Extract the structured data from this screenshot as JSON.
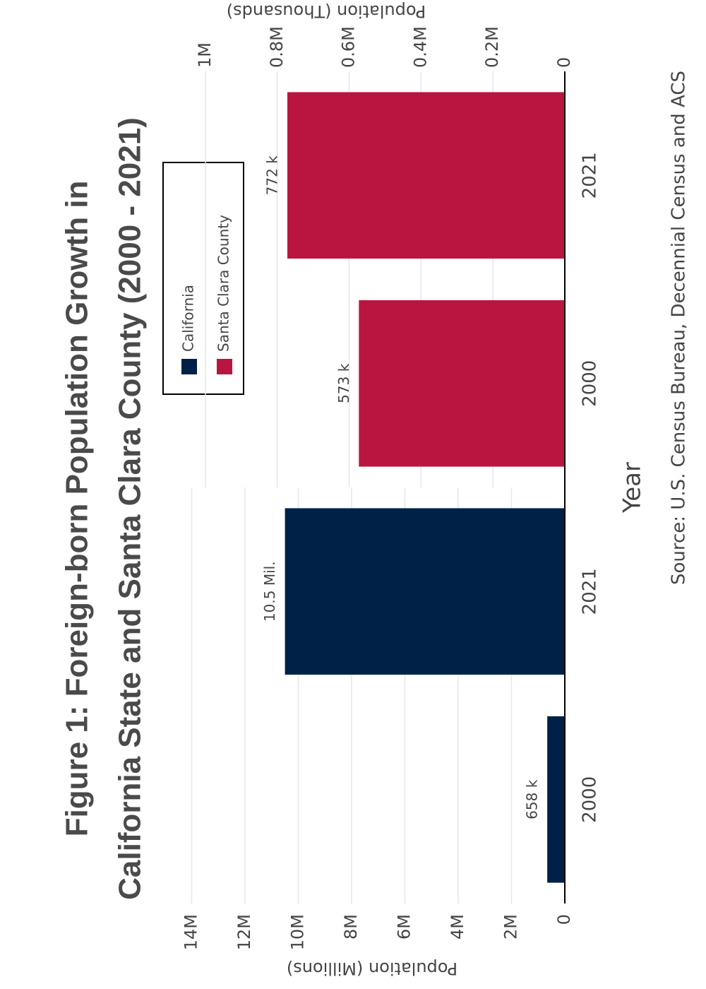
{
  "chart_data": {
    "type": "bar",
    "title": [
      "Figure 1: Foreign-born Population Growth in",
      "California State and Santa Clara County (2000 - 2021)"
    ],
    "x_label": "Year",
    "y_label": "Population (Millions)",
    "y2_label": "Population (Thousands)",
    "source": "Source: U.S. Census Bureau, Decennial Census and ACS",
    "categories": [
      "2000",
      "2021",
      "2000",
      "2021"
    ],
    "series": [
      {
        "name": "California",
        "color": "#002147",
        "axis": "y",
        "values": [
          658000,
          10500000,
          null,
          null
        ],
        "value_labels": [
          "658 k",
          "10.5 Mil.",
          null,
          null
        ]
      },
      {
        "name": "Santa Clara County",
        "color": "#ba1540",
        "axis": "y2",
        "values": [
          null,
          null,
          573000,
          772000
        ],
        "value_labels": [
          null,
          null,
          "573 k",
          "772 k"
        ]
      }
    ],
    "ylim": [
      0,
      18500000
    ],
    "yticks": [
      0,
      {
        "value": 2000000,
        "label": "2M"
      },
      {
        "value": 4000000,
        "label": "4M"
      },
      {
        "value": 6000000,
        "label": "6M"
      },
      {
        "value": 8000000,
        "label": "8M"
      },
      {
        "value": 10000000,
        "label": "10M"
      },
      {
        "value": 12000000,
        "label": "12M"
      },
      {
        "value": 14000000,
        "label": "14M"
      }
    ],
    "y2lim": [
      0,
      1372000
    ],
    "y2ticks": [
      0,
      {
        "value": 200000,
        "label": "0.2M"
      },
      {
        "value": 400000,
        "label": "0.4M"
      },
      {
        "value": 600000,
        "label": "0.6M"
      },
      {
        "value": 800000,
        "label": "0.8M"
      },
      {
        "value": 1000000,
        "label": "1M"
      }
    ],
    "grid": true,
    "legend_position": "top"
  }
}
